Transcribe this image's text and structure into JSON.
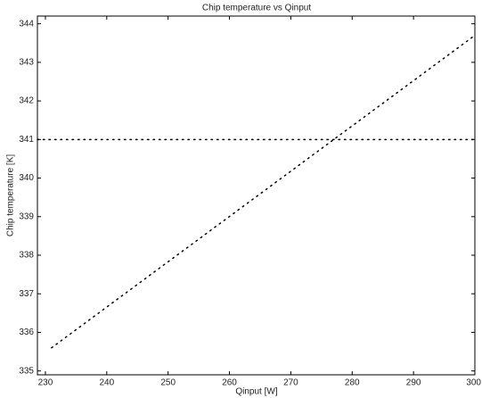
{
  "chart_data": {
    "type": "line",
    "title": "Chip temperature vs Qinput",
    "x_label": "Qinput [W]",
    "y_label": "Chip temperature [K]",
    "x": [
      231,
      300
    ],
    "series": [
      {
        "name": null,
        "color": "#000000",
        "values": [
          335.6,
          343.7
        ]
      },
      {
        "name": null,
        "color": "#000000",
        "x": [
          228.7,
          300
        ],
        "values": [
          341,
          341
        ]
      }
    ],
    "xlim": [
      228.7,
      300
    ],
    "ylim": [
      334.9,
      344.2
    ],
    "xticks": [
      230,
      240,
      250,
      260,
      270,
      280,
      290,
      300
    ],
    "yticks": [
      335,
      336,
      337,
      338,
      339,
      340,
      341,
      342,
      343,
      344
    ],
    "grid": false,
    "line_style": "dotted"
  }
}
